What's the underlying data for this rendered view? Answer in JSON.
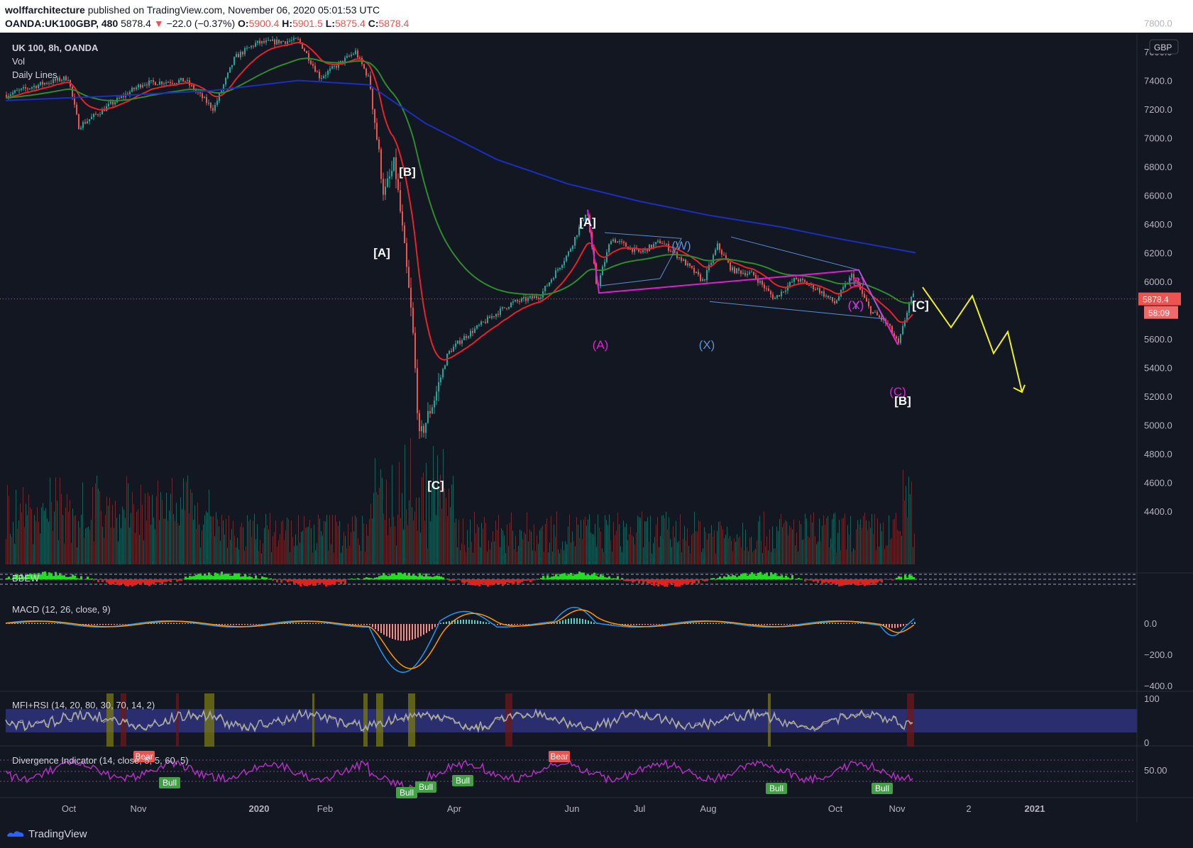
{
  "header": {
    "author": "wolffarchitecture",
    "published": "published on TradingView.com, November 06, 2020 05:01:53 UTC",
    "symbol": "OANDA:UK100GBP, 480",
    "last": "5878.4",
    "change": "−22.0 (−0.37%)",
    "o_label": "O:",
    "o": "5900.4",
    "h_label": "H:",
    "h": "5901.5",
    "l_label": "L:",
    "l": "5875.4",
    "c_label": "C:",
    "c": "5878.4"
  },
  "legend": {
    "title": "UK 100, 8h, OANDA",
    "vol": "Vol",
    "daily_lines": "Daily Lines",
    "bbew": "BBEW",
    "macd": "MACD (12, 26, close, 9)",
    "mfi": "MFI+RSI (14, 20, 80, 30, 70, 14, 2)",
    "div": "Divergence Indicator (14, close, 5, 5, 60, 5)"
  },
  "currency": "GBP",
  "price_ticks": [
    "7800.0",
    "7600.0",
    "7400.0",
    "7200.0",
    "7000.0",
    "6800.0",
    "6600.0",
    "6400.0",
    "6200.0",
    "6000.0",
    "5800.0",
    "5600.0",
    "5400.0",
    "5200.0",
    "5000.0",
    "4800.0",
    "4600.0",
    "4400.0"
  ],
  "price_tag": "5878.4",
  "timer_tag": "58:09",
  "macd_ticks": [
    "0.0",
    "−200.0",
    "−400.0"
  ],
  "mfi_ticks": [
    "100",
    "0"
  ],
  "div_ticks": [
    "50.00"
  ],
  "time_labels": [
    "Oct",
    "Nov",
    "2020",
    "Feb",
    "Apr",
    "Jun",
    "Jul",
    "Aug",
    "Oct",
    "Nov",
    "2",
    "2021"
  ],
  "wave_labels": [
    "[B]",
    "[A]",
    "[C]",
    "[A]",
    "(W)",
    "(A)",
    "(X)",
    "(B)",
    "(Y)",
    "(C)",
    "[B]",
    "[C]",
    "(X)"
  ],
  "div_badges": [
    "Bear",
    "Bull",
    "Bear",
    "Bull",
    "Bull",
    "Bull",
    "Bull",
    "Bull"
  ],
  "brand": "TradingView",
  "colors": {
    "background": "#131722",
    "up": "#26a69a",
    "down": "#ef5350",
    "ma_fast": "#e8222b",
    "ma_mid": "#2e8b2e",
    "ma_slow": "#1a2fbf",
    "wave_magenta": "#e020d0",
    "wave_blue": "#5b8fd6",
    "projection": "#f0f020"
  },
  "chart_data": {
    "type": "candlestick",
    "title": "UK 100, 8h, OANDA",
    "ylim": [
      4200,
      7800
    ],
    "x_range": [
      "2019-09",
      "2021-01"
    ],
    "key_prices": [
      {
        "label": "start",
        "value": 7300
      },
      {
        "label": "Jan 2020 high",
        "value": 7680
      },
      {
        "label": "[B]",
        "value": 6800
      },
      {
        "label": "[A]",
        "value": 6500
      },
      {
        "label": "[C] low",
        "value": 4900
      },
      {
        "label": "[A] Jun",
        "value": 6500
      },
      {
        "label": "(W)",
        "value": 6300
      },
      {
        "label": "(A)",
        "value": 5900
      },
      {
        "label": "(X)",
        "value": 5800
      },
      {
        "label": "(B)",
        "value": 6080
      },
      {
        "label": "(C)/[B]",
        "value": 5500
      },
      {
        "label": "last",
        "value": 5878.4
      }
    ],
    "projection": [
      5950,
      5700,
      5850,
      5500,
      5650,
      5230
    ]
  }
}
